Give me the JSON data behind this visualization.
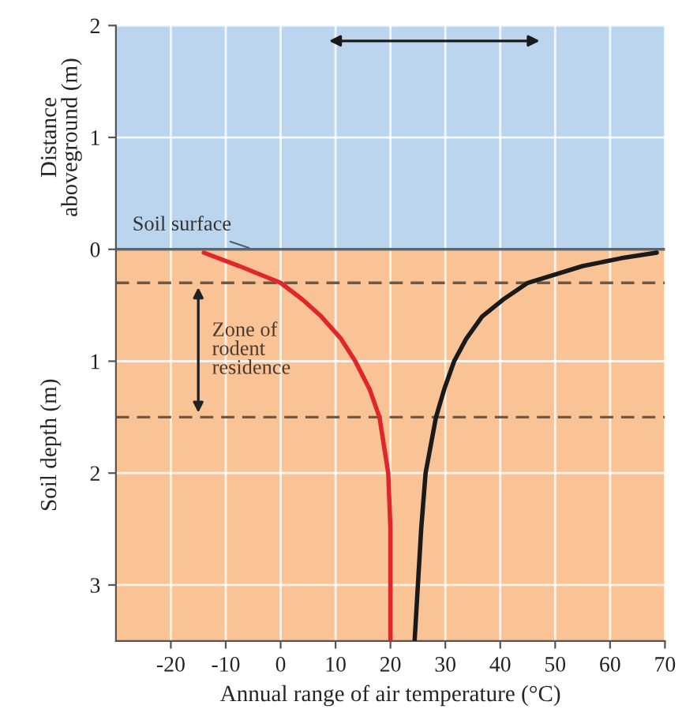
{
  "chart_data": {
    "type": "line",
    "xlabel": "Annual range of air temperature (°C)",
    "ylabel": "Soil depth (m)",
    "annotations": [
      "Distance\naboveground (m)",
      {
        "text": "Soil surface",
        "y": 0
      },
      "Zone of\nrodent\nresidence"
    ],
    "series": [
      {
        "color": "#e0262b",
        "x": [
          -14,
          -7.5,
          0,
          4,
          7.4,
          11,
          13.6,
          16.2,
          18,
          19.6,
          20,
          20,
          20
        ],
        "values": [
          -0.03,
          -0.15,
          -0.3,
          -0.45,
          -0.6,
          -0.8,
          -1,
          -1.25,
          -1.5,
          -2,
          -2.5,
          -3,
          -3.5
        ]
      },
      {
        "color": "#1a1a1a",
        "x": [
          68.5,
          62,
          55,
          45,
          40.5,
          36.7,
          33.8,
          31.6,
          29.8,
          28.3,
          26.4,
          25.6,
          25,
          24.4
        ],
        "values": [
          -0.03,
          -0.08,
          -0.15,
          -0.3,
          -0.45,
          -0.6,
          -0.8,
          -1,
          -1.25,
          -1.5,
          -2,
          -2.5,
          -3,
          -3.5
        ]
      }
    ],
    "xlim": [
      -30,
      70
    ],
    "xticks": [
      -20,
      -10,
      0,
      10,
      20,
      30,
      40,
      50,
      60,
      70
    ],
    "ylim": [
      -3.5,
      2
    ],
    "yticks": [
      {
        "value": -3,
        "label": "3"
      },
      {
        "value": -2,
        "label": "2"
      },
      {
        "value": -1,
        "label": "1"
      },
      0,
      1,
      2
    ],
    "bands": [
      {
        "axis": "y",
        "from": 0,
        "to": 2,
        "color": "#bcd5ee"
      },
      {
        "axis": "y",
        "from": -3.5,
        "to": 0,
        "color": "#f9c396"
      }
    ],
    "ref_lines": [
      {
        "axis": "y",
        "value": 0,
        "color": "#5a6670",
        "line_style": "solid"
      },
      {
        "axis": "y",
        "value": -0.3,
        "color": "#6b5a4a",
        "line_style": "dashed"
      },
      {
        "axis": "y",
        "value": -1.5,
        "color": "#6b5a4a",
        "line_style": "dashed"
      }
    ],
    "grid": true,
    "marker": "none",
    "line_style": "solid"
  }
}
